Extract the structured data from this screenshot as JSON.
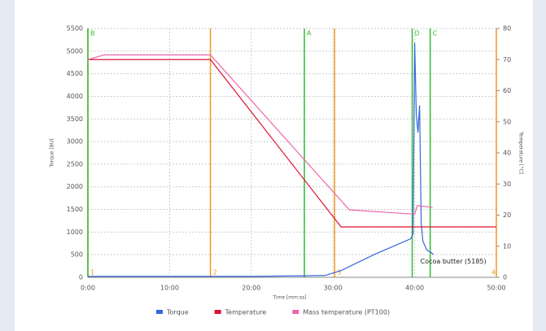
{
  "chart_data": {
    "type": "line",
    "x_label": "Time [mm:ss]",
    "y_label": "Torque [BU]",
    "y2_label": "Temperature [°C]",
    "xlim": [
      0,
      50
    ],
    "xticks": [
      {
        "value": 0,
        "label": "0:00"
      },
      {
        "value": 10,
        "label": "10:00"
      },
      {
        "value": 20,
        "label": "20:00"
      },
      {
        "value": 30,
        "label": "30:00"
      },
      {
        "value": 40,
        "label": "40:00"
      },
      {
        "value": 50,
        "label": "50:00"
      }
    ],
    "ylim": [
      0,
      5500
    ],
    "yticks": [
      0,
      500,
      1000,
      1500,
      2000,
      2500,
      3000,
      3500,
      4000,
      4500,
      5000,
      5500
    ],
    "y2lim": [
      0,
      80
    ],
    "y2ticks": [
      0,
      10,
      20,
      30,
      40,
      50,
      60,
      70,
      80
    ],
    "grid": true,
    "series": [
      {
        "name": "Torque",
        "color": "#3366dd",
        "axis": "y",
        "x": [
          0,
          20,
          29,
          31,
          35,
          39.5,
          39.8,
          40,
          40.2,
          40.4,
          40.6,
          40.8,
          41,
          41.5,
          42,
          42.3
        ],
        "values": [
          20,
          20,
          40,
          150,
          500,
          850,
          950,
          5185,
          3600,
          3200,
          3800,
          1200,
          800,
          600,
          550,
          500
        ]
      },
      {
        "name": "Temperature",
        "color": "#dd1133",
        "axis": "y2",
        "x": [
          0,
          15,
          31,
          50
        ],
        "values": [
          70,
          70,
          16.2,
          16.2
        ]
      },
      {
        "name": "Mass temperature (PT100)",
        "color": "#ee66aa",
        "axis": "y2",
        "x": [
          0,
          2,
          15,
          32,
          40,
          40.3,
          40.5,
          42.2
        ],
        "values": [
          70,
          71.5,
          71.5,
          21.7,
          20.3,
          23,
          23,
          22.5
        ]
      }
    ],
    "markers": [
      {
        "label": "1",
        "x": 0,
        "color": "#ee9922",
        "position": "bottom"
      },
      {
        "label": "2",
        "x": 15,
        "color": "#ee9922",
        "position": "bottom"
      },
      {
        "label": "3",
        "x": 30.2,
        "color": "#ee9922",
        "position": "bottom"
      },
      {
        "label": "4",
        "x": 50,
        "color": "#ee9922",
        "position": "bottom"
      },
      {
        "label": "B",
        "x": 0,
        "color": "#33bb33",
        "position": "top"
      },
      {
        "label": "A",
        "x": 26.5,
        "color": "#33bb33",
        "position": "top"
      },
      {
        "label": "D",
        "x": 39.7,
        "color": "#33bb33",
        "position": "top"
      },
      {
        "label": "C",
        "x": 41.9,
        "color": "#33bb33",
        "position": "top"
      }
    ],
    "annotation": {
      "text": "Cocoa butter (5185)",
      "x": 40.7,
      "y": 350
    }
  }
}
